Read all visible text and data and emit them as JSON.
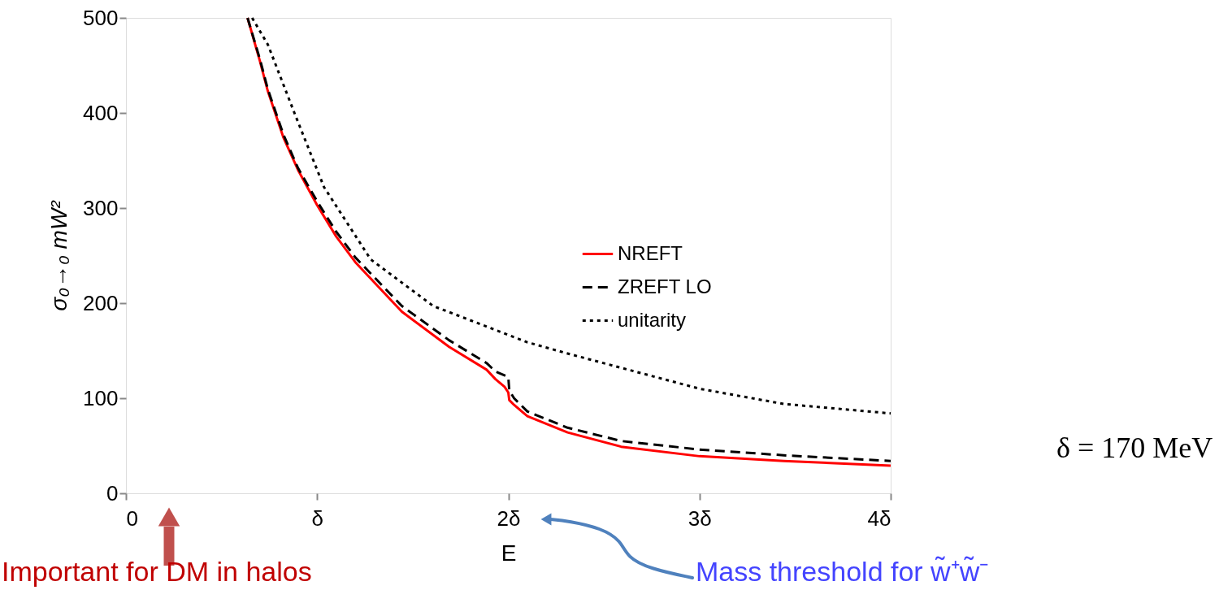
{
  "chart_data": {
    "type": "line",
    "xlabel": "E",
    "ylabel": "σ₀→₀ mW²",
    "xlim": [
      0,
      4
    ],
    "ylim": [
      0,
      500
    ],
    "xticks": [
      0,
      {
        "value": 1,
        "label": "δ"
      },
      {
        "value": 2,
        "label": "2δ"
      },
      {
        "value": 3,
        "label": "3δ"
      },
      {
        "value": 4,
        "label": "4δ"
      }
    ],
    "yticks": [
      0,
      100,
      200,
      300,
      400,
      500
    ],
    "grid": false,
    "legend": "center",
    "series": [
      {
        "name": "NREFT",
        "color": "#ff0000",
        "line_style": "solid",
        "x": [
          0.636,
          0.7,
          0.742,
          0.824,
          0.9,
          1.0,
          1.1,
          1.2,
          1.443,
          1.69,
          1.886,
          1.933,
          1.98,
          2.0,
          2.005,
          2.03,
          2.1,
          2.31,
          2.59,
          3.0,
          3.44,
          4.0
        ],
        "values": [
          500,
          455,
          423,
          374,
          340,
          303,
          270,
          243,
          191,
          154,
          130,
          120,
          112,
          106,
          98,
          93,
          81,
          64,
          49,
          39,
          34,
          29
        ]
      },
      {
        "name": "ZREFT LO",
        "color": "#000000",
        "line_style": "dashed",
        "x": [
          0.636,
          0.7,
          0.742,
          0.824,
          0.9,
          1.0,
          1.1,
          1.2,
          1.443,
          1.69,
          1.886,
          1.933,
          1.98,
          2.0,
          2.005,
          2.03,
          2.1,
          2.31,
          2.59,
          3.0,
          3.44,
          4.0
        ],
        "values": [
          500,
          457,
          425,
          377,
          342,
          307,
          275,
          248,
          197,
          161,
          137,
          128,
          124,
          122,
          108,
          100,
          86,
          69,
          55,
          46,
          40,
          34
        ]
      },
      {
        "name": "unitarity",
        "color": "#000000",
        "line_style": "dotted",
        "x": [
          0.66,
          0.742,
          0.887,
          1.036,
          1.28,
          1.607,
          2.097,
          2.31,
          3.0,
          3.44,
          4.0
        ],
        "values": [
          500,
          472,
          397,
          322,
          246,
          197,
          159,
          147,
          110,
          94,
          84
        ]
      }
    ],
    "annotations": [
      "δ = 170 MeV",
      "Important for DM in halos",
      "Mass threshold for w̃⁺w̃⁻"
    ]
  }
}
